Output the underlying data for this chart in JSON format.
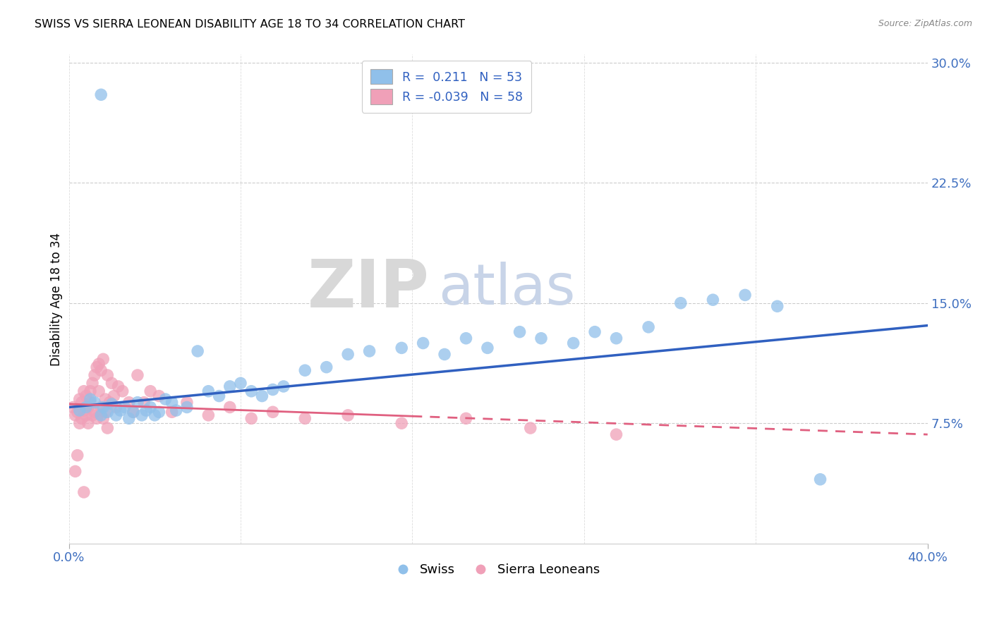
{
  "title": "SWISS VS SIERRA LEONEAN DISABILITY AGE 18 TO 34 CORRELATION CHART",
  "source": "Source: ZipAtlas.com",
  "ylabel": "Disability Age 18 to 34",
  "xlim": [
    0.0,
    0.4
  ],
  "ylim": [
    0.0,
    0.305
  ],
  "yticks": [
    0.075,
    0.15,
    0.225,
    0.3
  ],
  "ytick_labels": [
    "7.5%",
    "15.0%",
    "22.5%",
    "30.0%"
  ],
  "xtick_labels": [
    "0.0%",
    "40.0%"
  ],
  "swiss_R": 0.211,
  "swiss_N": 53,
  "sierra_R": -0.039,
  "sierra_N": 58,
  "swiss_color": "#90C0EA",
  "sierra_color": "#F0A0B8",
  "swiss_line_color": "#3060C0",
  "sierra_line_color": "#E06080",
  "watermark_zip": "ZIP",
  "watermark_atlas": "atlas",
  "swiss_x": [
    0.005,
    0.008,
    0.01,
    0.012,
    0.015,
    0.016,
    0.018,
    0.02,
    0.022,
    0.024,
    0.026,
    0.028,
    0.03,
    0.032,
    0.034,
    0.036,
    0.038,
    0.04,
    0.042,
    0.045,
    0.048,
    0.05,
    0.055,
    0.06,
    0.065,
    0.07,
    0.075,
    0.08,
    0.085,
    0.09,
    0.095,
    0.1,
    0.11,
    0.12,
    0.13,
    0.14,
    0.155,
    0.165,
    0.175,
    0.185,
    0.195,
    0.21,
    0.22,
    0.235,
    0.245,
    0.255,
    0.27,
    0.285,
    0.3,
    0.315,
    0.33,
    0.35,
    0.015
  ],
  "swiss_y": [
    0.083,
    0.085,
    0.09,
    0.088,
    0.08,
    0.085,
    0.082,
    0.087,
    0.08,
    0.083,
    0.085,
    0.078,
    0.082,
    0.088,
    0.08,
    0.083,
    0.085,
    0.08,
    0.082,
    0.09,
    0.088,
    0.083,
    0.085,
    0.12,
    0.095,
    0.092,
    0.098,
    0.1,
    0.095,
    0.092,
    0.096,
    0.098,
    0.108,
    0.11,
    0.118,
    0.12,
    0.122,
    0.125,
    0.118,
    0.128,
    0.122,
    0.132,
    0.128,
    0.125,
    0.132,
    0.128,
    0.135,
    0.15,
    0.152,
    0.155,
    0.148,
    0.04,
    0.28
  ],
  "sierra_x": [
    0.002,
    0.003,
    0.004,
    0.005,
    0.005,
    0.006,
    0.006,
    0.007,
    0.007,
    0.008,
    0.008,
    0.009,
    0.009,
    0.01,
    0.01,
    0.011,
    0.011,
    0.012,
    0.012,
    0.013,
    0.013,
    0.014,
    0.014,
    0.015,
    0.015,
    0.016,
    0.016,
    0.017,
    0.017,
    0.018,
    0.018,
    0.019,
    0.02,
    0.021,
    0.022,
    0.023,
    0.025,
    0.028,
    0.03,
    0.032,
    0.035,
    0.038,
    0.042,
    0.048,
    0.055,
    0.065,
    0.075,
    0.085,
    0.095,
    0.11,
    0.13,
    0.155,
    0.185,
    0.215,
    0.255,
    0.003,
    0.004,
    0.007
  ],
  "sierra_y": [
    0.085,
    0.08,
    0.082,
    0.075,
    0.09,
    0.078,
    0.088,
    0.083,
    0.095,
    0.08,
    0.092,
    0.085,
    0.075,
    0.088,
    0.095,
    0.08,
    0.1,
    0.105,
    0.082,
    0.078,
    0.11,
    0.095,
    0.112,
    0.085,
    0.108,
    0.078,
    0.115,
    0.09,
    0.082,
    0.105,
    0.072,
    0.088,
    0.1,
    0.092,
    0.085,
    0.098,
    0.095,
    0.088,
    0.082,
    0.105,
    0.088,
    0.095,
    0.092,
    0.082,
    0.088,
    0.08,
    0.085,
    0.078,
    0.082,
    0.078,
    0.08,
    0.075,
    0.078,
    0.072,
    0.068,
    0.045,
    0.055,
    0.032
  ]
}
